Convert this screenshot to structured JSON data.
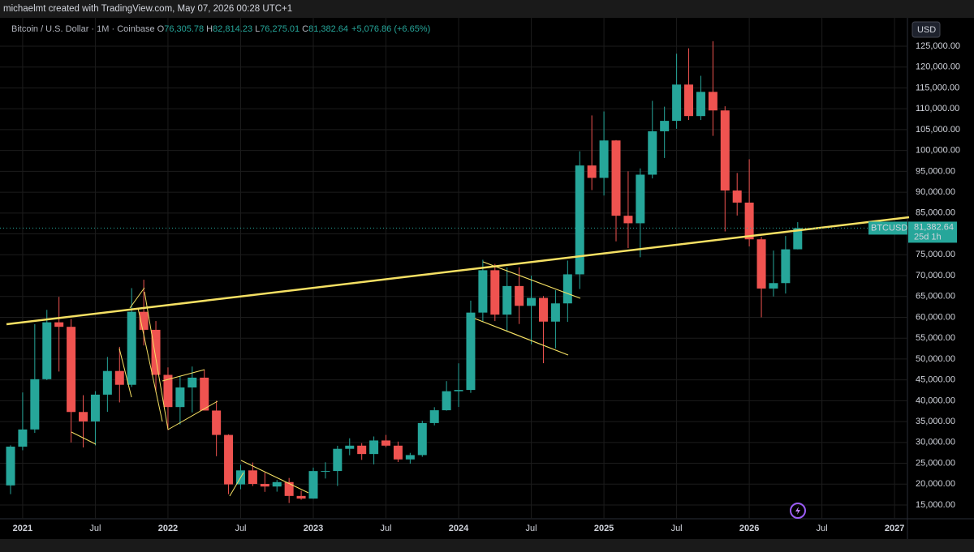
{
  "header": {
    "credit": "michaelmt created with TradingView.com, May 07, 2026 00:28 UTC+1"
  },
  "chart_data": {
    "type": "candlestick",
    "symbol_line": "Bitcoin / U.S. Dollar · 1M · Coinbase",
    "ohlc_labels": {
      "o": "O",
      "h": "H",
      "l": "L",
      "c": "C"
    },
    "ohlc_values": {
      "o": "76,305.78",
      "h": "82,814.23",
      "l": "76,275.01",
      "c": "81,382.64",
      "change": "+5,076.86 (+6.65%)"
    },
    "currency": "USD",
    "price_label": {
      "symbol": "BTCUSD",
      "price": "81,382.64",
      "countdown": "25d 1h"
    },
    "categories": [
      null,
      "2021",
      null,
      null,
      null,
      null,
      null,
      "Jul",
      null,
      null,
      null,
      null,
      null,
      "2022",
      null,
      null,
      null,
      null,
      null,
      "Jul",
      null,
      null,
      null,
      null,
      null,
      "2023",
      null,
      null,
      null,
      null,
      null,
      "Jul",
      null,
      null,
      null,
      null,
      null,
      "2024",
      null,
      null,
      null,
      null,
      null,
      "Jul",
      null,
      null,
      null,
      null,
      null,
      "2025",
      null,
      null,
      null,
      null,
      null,
      "Jul",
      null,
      null,
      null,
      null,
      null,
      "2026",
      null,
      null,
      null,
      null,
      null,
      "Jul",
      null,
      null,
      null,
      null,
      null,
      "2027"
    ],
    "open": [
      19700,
      28990,
      33110,
      45160,
      58800,
      57720,
      37300,
      35040,
      41460,
      47130,
      43820,
      61320,
      57000,
      46200,
      38480,
      43180,
      45530,
      37650,
      31800,
      19940,
      23300,
      20050,
      19430,
      20490,
      17170,
      16540,
      23140,
      23150,
      28470,
      29230,
      27220,
      30470,
      29230,
      25930,
      26970,
      34650,
      37720,
      42280,
      42580,
      61130,
      71290,
      60640,
      67500,
      62750,
      64650,
      58970,
      63340,
      70300,
      96400,
      93430,
      102400,
      84350,
      82550,
      94200,
      104600,
      107100,
      115800,
      108250,
      114050,
      109600,
      90400,
      87500,
      78700,
      66900,
      68200,
      76305.78,
      null,
      null,
      null,
      null,
      null,
      null,
      null,
      null
    ],
    "high": [
      29300,
      41986,
      58367,
      61788,
      64895,
      59590,
      41330,
      42300,
      50500,
      52920,
      67000,
      69000,
      59100,
      47990,
      45820,
      48200,
      47450,
      40000,
      31950,
      24650,
      25200,
      22800,
      20990,
      21480,
      18400,
      23960,
      25250,
      29200,
      31000,
      29830,
      31430,
      31800,
      30200,
      27500,
      35200,
      38450,
      44700,
      48970,
      64000,
      73800,
      72800,
      71960,
      71980,
      70000,
      65100,
      66500,
      73600,
      99800,
      108400,
      109350,
      102500,
      95000,
      95700,
      111900,
      110500,
      123200,
      124500,
      117900,
      126200,
      110600,
      94600,
      97900,
      79300,
      76000,
      79500,
      82814.23,
      null,
      null,
      null,
      null,
      null,
      null,
      null,
      null
    ],
    "low": [
      17600,
      28130,
      32300,
      44950,
      47000,
      30000,
      28800,
      29280,
      37330,
      39600,
      43290,
      53250,
      42000,
      32950,
      34300,
      37200,
      37700,
      26700,
      17600,
      18780,
      19550,
      18150,
      18200,
      15480,
      16260,
      16500,
      21350,
      19570,
      26940,
      25820,
      24750,
      28860,
      25300,
      24900,
      26550,
      34100,
      37620,
      38500,
      41880,
      59000,
      59100,
      56550,
      58400,
      53500,
      49000,
      52550,
      58900,
      66800,
      90500,
      89200,
      78200,
      76600,
      74400,
      93300,
      98200,
      105200,
      107300,
      107300,
      103500,
      80600,
      84400,
      77000,
      60000,
      65000,
      65700,
      76275.01,
      null,
      null,
      null,
      null,
      null,
      null,
      null,
      null
    ],
    "close": [
      28990,
      33110,
      45160,
      58800,
      57720,
      37300,
      35040,
      41460,
      47130,
      43820,
      61320,
      57000,
      46200,
      38480,
      43180,
      45530,
      37650,
      31800,
      19940,
      23300,
      20050,
      19430,
      20490,
      17170,
      16540,
      23140,
      23150,
      28470,
      29230,
      27220,
      30470,
      29230,
      25930,
      26970,
      34650,
      37720,
      42280,
      42580,
      61130,
      71290,
      60640,
      67500,
      62750,
      64650,
      58970,
      63340,
      70300,
      96400,
      93430,
      102400,
      84350,
      82550,
      94200,
      104600,
      107100,
      115800,
      108250,
      114050,
      109600,
      90400,
      87500,
      78700,
      66900,
      68200,
      76300,
      81382.64,
      null,
      null,
      null,
      null,
      null,
      null,
      null,
      null
    ],
    "up_color": "#26a69a",
    "down_color": "#ef5350",
    "ylim": [
      11700,
      131800
    ],
    "yticks": [
      {
        "value": 15000,
        "label": "15,000.00"
      },
      {
        "value": 20000,
        "label": "20,000.00"
      },
      {
        "value": 25000,
        "label": "25,000.00"
      },
      {
        "value": 30000,
        "label": "30,000.00"
      },
      {
        "value": 35000,
        "label": "35,000.00"
      },
      {
        "value": 40000,
        "label": "40,000.00"
      },
      {
        "value": 45000,
        "label": "45,000.00"
      },
      {
        "value": 50000,
        "label": "50,000.00"
      },
      {
        "value": 55000,
        "label": "55,000.00"
      },
      {
        "value": 60000,
        "label": "60,000.00"
      },
      {
        "value": 65000,
        "label": "65,000.00"
      },
      {
        "value": 70000,
        "label": "70,000.00"
      },
      {
        "value": 75000,
        "label": "75,000.00"
      },
      {
        "value": 80000,
        "label": "80,000.00"
      },
      {
        "value": 85000,
        "label": "85,000.00"
      },
      {
        "value": 90000,
        "label": "90,000.00"
      },
      {
        "value": 95000,
        "label": "95,000.00"
      },
      {
        "value": 100000,
        "label": "100,000.00"
      },
      {
        "value": 105000,
        "label": "105,000.00"
      },
      {
        "value": 110000,
        "label": "110,000.00"
      },
      {
        "value": 115000,
        "label": "115,000.00"
      },
      {
        "value": 120000,
        "label": "120,000.00"
      },
      {
        "value": 125000,
        "label": "125,000.00"
      }
    ],
    "grid": true
  }
}
